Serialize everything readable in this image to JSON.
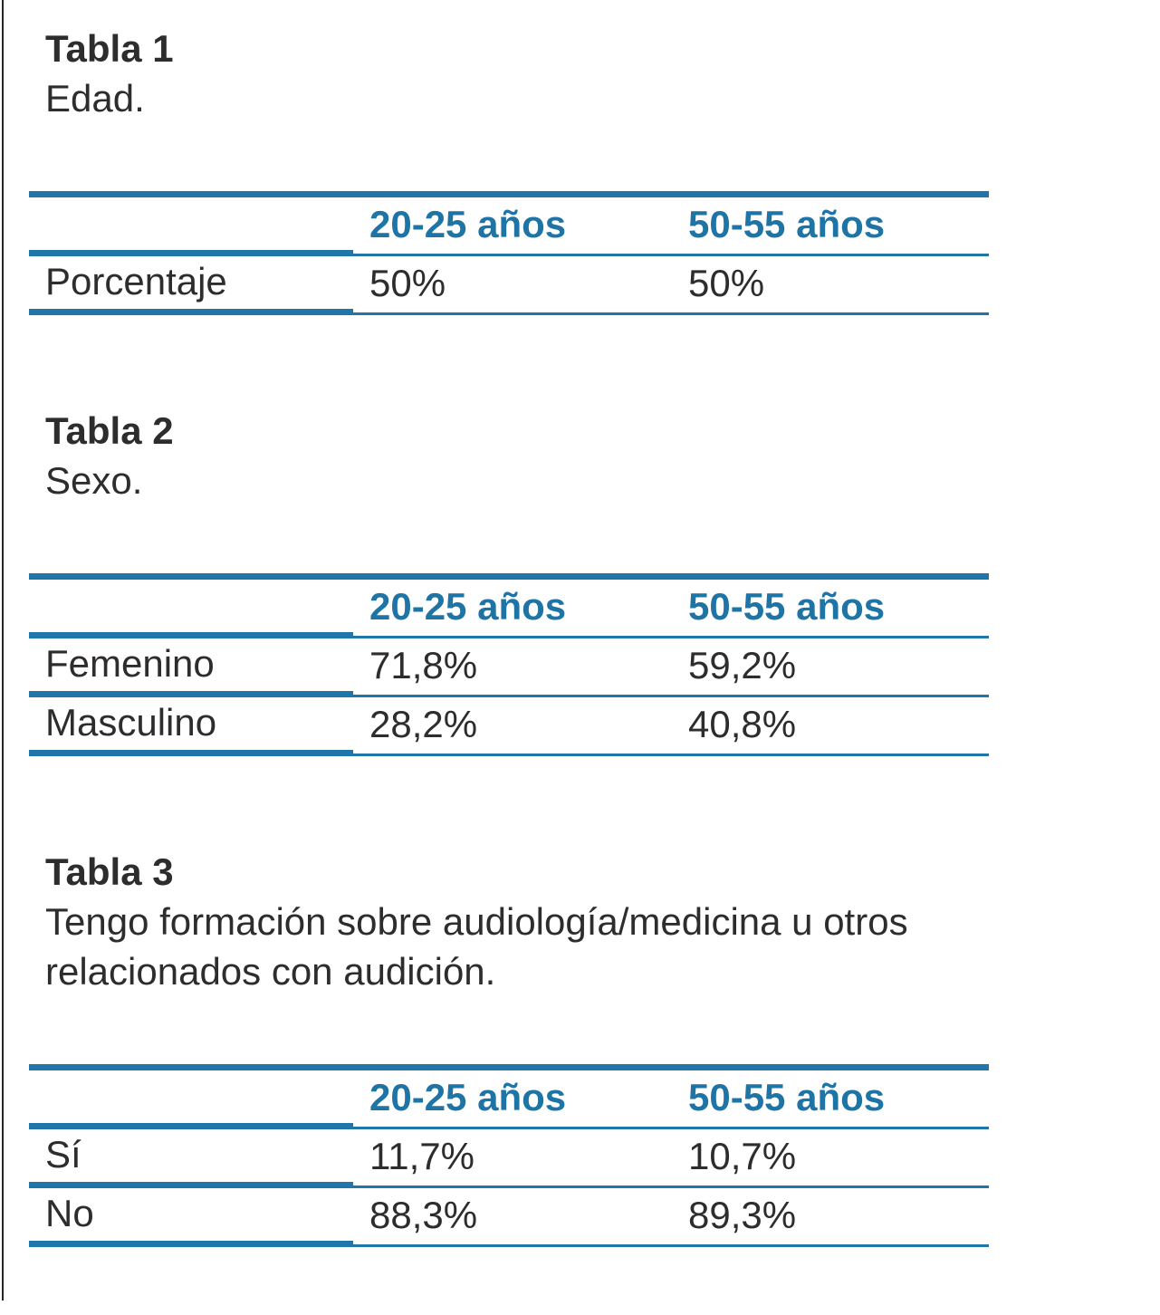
{
  "colors": {
    "accent": "#2076a8",
    "accent_text": "#1f74a6",
    "ink": "#2d2d2d",
    "left_rule": "#262626",
    "background": "#ffffff"
  },
  "tables": [
    {
      "title": "Tabla 1",
      "caption_lines": [
        "Edad."
      ],
      "columns": [
        "",
        "20-25 años",
        "50-55 años"
      ],
      "rows": [
        {
          "label": "Porcentaje",
          "values": [
            "50%",
            "50%"
          ]
        }
      ]
    },
    {
      "title": "Tabla 2",
      "caption_lines": [
        "Sexo."
      ],
      "columns": [
        "",
        "20-25 años",
        "50-55 años"
      ],
      "rows": [
        {
          "label": "Femenino",
          "values": [
            "71,8%",
            "59,2%"
          ]
        },
        {
          "label": "Masculino",
          "values": [
            "28,2%",
            "40,8%"
          ]
        }
      ]
    },
    {
      "title": "Tabla 3",
      "caption_lines": [
        "Tengo formación sobre audiología/medicina u otros",
        "relacionados con audición."
      ],
      "columns": [
        "",
        "20-25 años",
        "50-55 años"
      ],
      "rows": [
        {
          "label": "Sí",
          "values": [
            "11,7%",
            "10,7%"
          ]
        },
        {
          "label": "No",
          "values": [
            "88,3%",
            "89,3%"
          ]
        }
      ]
    }
  ]
}
